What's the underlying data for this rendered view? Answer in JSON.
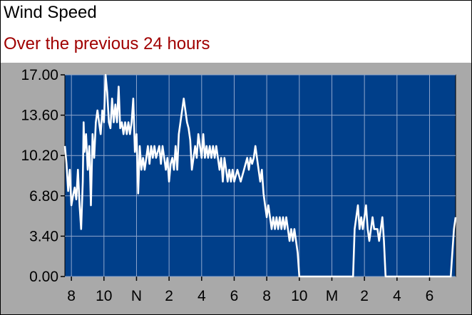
{
  "header": {
    "title": "Wind Speed",
    "subtitle": "Over the previous 24  hours"
  },
  "colors": {
    "plot_background": "#003f8a",
    "line": "#ffffff",
    "grid": "#8fa6cc",
    "subtitle": "#a00000",
    "panel": "#a9a9a9"
  },
  "chart_data": {
    "type": "line",
    "title": "Wind Speed",
    "subtitle": "Over the previous 24  hours",
    "xlabel": "",
    "ylabel": "",
    "ylim": [
      0,
      17
    ],
    "yticks": [
      "0.00",
      "3.40",
      "6.80",
      "10.20",
      "13.60",
      "17.00"
    ],
    "ytick_values": [
      0,
      3.4,
      6.8,
      10.2,
      13.6,
      17
    ],
    "xlim": [
      7.6,
      31.6
    ],
    "xticks": [
      "8",
      "10",
      "N",
      "2",
      "4",
      "6",
      "8",
      "10",
      "M",
      "2",
      "4",
      "6"
    ],
    "xtick_values": [
      8,
      10,
      12,
      14,
      16,
      18,
      20,
      22,
      24,
      26,
      28,
      30
    ],
    "grid": true,
    "series": [
      {
        "values": [
          [
            7.6,
            11.0
          ],
          [
            7.7,
            9.5
          ],
          [
            7.8,
            7.2
          ],
          [
            7.9,
            9.0
          ],
          [
            8.0,
            6.0
          ],
          [
            8.1,
            6.8
          ],
          [
            8.2,
            7.5
          ],
          [
            8.3,
            6.5
          ],
          [
            8.4,
            9.0
          ],
          [
            8.5,
            6.0
          ],
          [
            8.6,
            4.0
          ],
          [
            8.7,
            8.0
          ],
          [
            8.75,
            13.0
          ],
          [
            8.8,
            10.5
          ],
          [
            8.9,
            12.0
          ],
          [
            9.0,
            9.0
          ],
          [
            9.1,
            11.0
          ],
          [
            9.2,
            6.0
          ],
          [
            9.3,
            12.0
          ],
          [
            9.4,
            10.0
          ],
          [
            9.5,
            13.0
          ],
          [
            9.6,
            14.0
          ],
          [
            9.7,
            13.0
          ],
          [
            9.8,
            12.0
          ],
          [
            9.9,
            14.0
          ],
          [
            10.0,
            13.0
          ],
          [
            10.1,
            17.0
          ],
          [
            10.2,
            15.5
          ],
          [
            10.3,
            13.0
          ],
          [
            10.4,
            12.5
          ],
          [
            10.5,
            15.0
          ],
          [
            10.6,
            13.0
          ],
          [
            10.7,
            14.5
          ],
          [
            10.8,
            13.0
          ],
          [
            10.9,
            16.0
          ],
          [
            11.0,
            12.5
          ],
          [
            11.1,
            13.0
          ],
          [
            11.2,
            12.0
          ],
          [
            11.3,
            13.0
          ],
          [
            11.4,
            12.0
          ],
          [
            11.5,
            13.0
          ],
          [
            11.6,
            12.0
          ],
          [
            11.7,
            13.0
          ],
          [
            11.8,
            15.0
          ],
          [
            11.9,
            10.5
          ],
          [
            12.0,
            12.0
          ],
          [
            12.1,
            7.0
          ],
          [
            12.2,
            11.0
          ],
          [
            12.3,
            9.0
          ],
          [
            12.4,
            10.0
          ],
          [
            12.5,
            9.0
          ],
          [
            12.6,
            10.0
          ],
          [
            12.7,
            11.0
          ],
          [
            12.8,
            9.5
          ],
          [
            12.9,
            11.0
          ],
          [
            13.0,
            10.0
          ],
          [
            13.1,
            11.0
          ],
          [
            13.2,
            10.0
          ],
          [
            13.4,
            11.0
          ],
          [
            13.5,
            9.5
          ],
          [
            13.6,
            11.0
          ],
          [
            13.7,
            10.0
          ],
          [
            13.8,
            9.0
          ],
          [
            13.9,
            10.0
          ],
          [
            14.0,
            8.0
          ],
          [
            14.1,
            9.5
          ],
          [
            14.2,
            10.0
          ],
          [
            14.3,
            9.0
          ],
          [
            14.4,
            11.0
          ],
          [
            14.5,
            9.0
          ],
          [
            14.6,
            12.0
          ],
          [
            14.7,
            13.0
          ],
          [
            14.8,
            14.0
          ],
          [
            14.9,
            15.0
          ],
          [
            15.0,
            14.0
          ],
          [
            15.1,
            13.0
          ],
          [
            15.2,
            12.5
          ],
          [
            15.3,
            11.5
          ],
          [
            15.4,
            9.0
          ],
          [
            15.5,
            10.0
          ],
          [
            15.6,
            11.0
          ],
          [
            15.7,
            10.0
          ],
          [
            15.8,
            12.0
          ],
          [
            15.9,
            11.0
          ],
          [
            16.0,
            10.0
          ],
          [
            16.1,
            12.0
          ],
          [
            16.2,
            10.0
          ],
          [
            16.3,
            11.0
          ],
          [
            16.4,
            10.0
          ],
          [
            16.5,
            11.0
          ],
          [
            16.6,
            10.0
          ],
          [
            16.7,
            11.0
          ],
          [
            16.8,
            10.0
          ],
          [
            16.9,
            11.0
          ],
          [
            17.0,
            10.0
          ],
          [
            17.1,
            9.0
          ],
          [
            17.2,
            10.0
          ],
          [
            17.3,
            8.0
          ],
          [
            17.4,
            10.0
          ],
          [
            17.5,
            9.0
          ],
          [
            17.6,
            8.0
          ],
          [
            17.7,
            9.0
          ],
          [
            17.8,
            8.0
          ],
          [
            17.9,
            9.0
          ],
          [
            18.0,
            8.0
          ],
          [
            18.2,
            9.0
          ],
          [
            18.4,
            8.0
          ],
          [
            18.6,
            9.0
          ],
          [
            18.8,
            10.0
          ],
          [
            18.9,
            9.0
          ],
          [
            19.0,
            10.0
          ],
          [
            19.1,
            9.5
          ],
          [
            19.2,
            10.0
          ],
          [
            19.3,
            11.0
          ],
          [
            19.4,
            10.0
          ],
          [
            19.5,
            9.0
          ],
          [
            19.6,
            8.0
          ],
          [
            19.7,
            9.0
          ],
          [
            19.8,
            7.0
          ],
          [
            19.9,
            6.0
          ],
          [
            20.0,
            5.0
          ],
          [
            20.1,
            6.0
          ],
          [
            20.2,
            5.0
          ],
          [
            20.3,
            4.0
          ],
          [
            20.4,
            5.0
          ],
          [
            20.5,
            4.0
          ],
          [
            20.6,
            5.0
          ],
          [
            20.7,
            4.0
          ],
          [
            20.8,
            5.0
          ],
          [
            20.9,
            4.0
          ],
          [
            21.0,
            5.0
          ],
          [
            21.1,
            4.0
          ],
          [
            21.2,
            5.0
          ],
          [
            21.3,
            4.0
          ],
          [
            21.4,
            3.0
          ],
          [
            21.5,
            4.0
          ],
          [
            21.6,
            3.0
          ],
          [
            21.7,
            4.0
          ],
          [
            21.8,
            3.0
          ],
          [
            21.9,
            2.0
          ],
          [
            22.0,
            0.0
          ],
          [
            22.6,
            0.0
          ],
          [
            23.0,
            0.0
          ],
          [
            24.0,
            0.0
          ],
          [
            25.0,
            0.0
          ],
          [
            25.3,
            0.0
          ],
          [
            25.4,
            4.0
          ],
          [
            25.5,
            5.0
          ],
          [
            25.6,
            6.0
          ],
          [
            25.7,
            4.0
          ],
          [
            25.8,
            5.0
          ],
          [
            25.9,
            4.0
          ],
          [
            26.0,
            5.0
          ],
          [
            26.1,
            6.0
          ],
          [
            26.2,
            4.0
          ],
          [
            26.3,
            3.0
          ],
          [
            26.4,
            4.0
          ],
          [
            26.5,
            5.0
          ],
          [
            26.6,
            4.0
          ],
          [
            26.8,
            4.0
          ],
          [
            26.9,
            3.0
          ],
          [
            27.0,
            4.0
          ],
          [
            27.1,
            5.0
          ],
          [
            27.2,
            3.0
          ],
          [
            27.3,
            0.0
          ],
          [
            28.0,
            0.0
          ],
          [
            29.0,
            0.0
          ],
          [
            30.0,
            0.0
          ],
          [
            31.0,
            0.0
          ],
          [
            31.3,
            0.0
          ],
          [
            31.4,
            2.0
          ],
          [
            31.5,
            4.0
          ],
          [
            31.6,
            5.0
          ]
        ]
      }
    ]
  }
}
